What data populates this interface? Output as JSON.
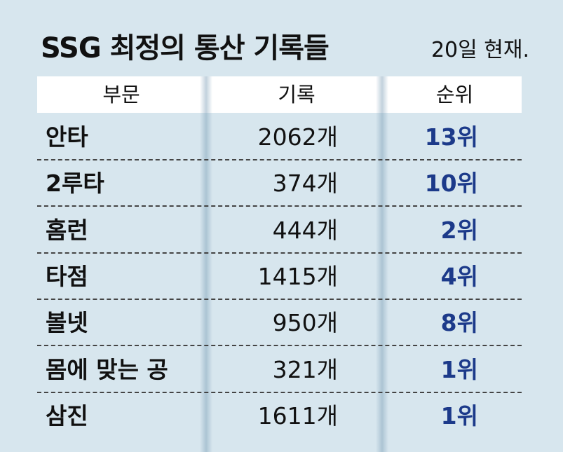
{
  "title": "SSG 최정의 통산 기록들",
  "date_note": "20일 현재.",
  "chart_data": {
    "type": "table",
    "columns": [
      "부문",
      "기록",
      "순위"
    ],
    "rows": [
      {
        "category": "안타",
        "record": "2062개",
        "rank": "13위"
      },
      {
        "category": "2루타",
        "record": "374개",
        "rank": "10위"
      },
      {
        "category": "홈런",
        "record": "444개",
        "rank": "2위"
      },
      {
        "category": "타점",
        "record": "1415개",
        "rank": "4위"
      },
      {
        "category": "볼넷",
        "record": "950개",
        "rank": "8위"
      },
      {
        "category": "몸에 맞는 공",
        "record": "321개",
        "rank": "1위"
      },
      {
        "category": "삼진",
        "record": "1611개",
        "rank": "1위"
      }
    ]
  },
  "colors": {
    "background": "#d7e6ee",
    "header_background": "#ffffff",
    "rank_text": "#1c3a8a"
  }
}
